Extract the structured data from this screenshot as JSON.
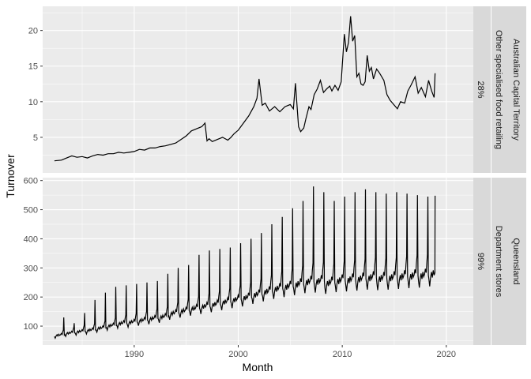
{
  "chart_data": {
    "type": "line",
    "xlabel": "Month",
    "ylabel": "Turnover",
    "x_ticks": [
      1990,
      2000,
      2010,
      2020
    ],
    "xlim": [
      1981.2,
      2022.6
    ],
    "colors": {
      "panel": "#ebebeb",
      "grid": "#ffffff",
      "line": "#000000",
      "strip": "#d9d9d9"
    },
    "panels": [
      {
        "strip_outer": "Australian Capital Territory",
        "strip_inner": "Other specialised food retailing",
        "strip_pct": "28%",
        "ylim": [
          0.0,
          23.4
        ],
        "y_ticks": [
          5,
          10,
          15,
          20
        ],
        "x": [
          1982.33,
          1983.0,
          1983.5,
          1984.0,
          1984.5,
          1985.0,
          1985.5,
          1986.0,
          1986.5,
          1987.0,
          1987.5,
          1988.0,
          1988.5,
          1989.0,
          1989.5,
          1990.0,
          1990.5,
          1991.0,
          1991.5,
          1992.0,
          1992.5,
          1993.0,
          1993.5,
          1994.0,
          1994.5,
          1995.0,
          1995.5,
          1996.0,
          1996.5,
          1996.8,
          1997.0,
          1997.2,
          1997.5,
          1998.0,
          1998.5,
          1999.0,
          1999.3,
          1999.6,
          2000.0,
          2000.5,
          2001.0,
          2001.5,
          2001.8,
          2002.0,
          2002.3,
          2002.6,
          2003.0,
          2003.5,
          2004.0,
          2004.5,
          2005.0,
          2005.3,
          2005.5,
          2005.8,
          2006.0,
          2006.3,
          2006.5,
          2006.8,
          2007.0,
          2007.3,
          2007.6,
          2007.9,
          2008.2,
          2008.5,
          2008.8,
          2009.0,
          2009.3,
          2009.6,
          2009.9,
          2010.0,
          2010.2,
          2010.4,
          2010.6,
          2010.8,
          2011.0,
          2011.2,
          2011.4,
          2011.6,
          2011.8,
          2012.0,
          2012.2,
          2012.4,
          2012.6,
          2012.8,
          2013.0,
          2013.3,
          2013.6,
          2014.0,
          2014.3,
          2014.6,
          2015.0,
          2015.3,
          2015.6,
          2016.0,
          2016.3,
          2016.6,
          2017.0,
          2017.3,
          2017.6,
          2018.0,
          2018.3,
          2018.6,
          2018.83,
          2018.92
        ],
        "values": [
          1.7,
          1.8,
          2.1,
          2.4,
          2.2,
          2.3,
          2.1,
          2.4,
          2.6,
          2.5,
          2.7,
          2.7,
          2.9,
          2.8,
          2.9,
          3.0,
          3.3,
          3.2,
          3.5,
          3.5,
          3.7,
          3.8,
          4.0,
          4.2,
          4.7,
          5.2,
          5.9,
          6.2,
          6.5,
          7.0,
          4.5,
          4.8,
          4.4,
          4.7,
          5.0,
          4.6,
          5.0,
          5.5,
          6.0,
          7.0,
          8.0,
          9.3,
          10.5,
          13.2,
          9.5,
          9.8,
          8.7,
          9.3,
          8.6,
          9.3,
          9.6,
          9.0,
          12.6,
          6.5,
          5.8,
          6.3,
          7.6,
          9.3,
          8.9,
          11.0,
          11.8,
          13.0,
          11.3,
          11.8,
          12.2,
          11.5,
          12.3,
          11.6,
          12.8,
          15.0,
          19.5,
          17.0,
          18.3,
          22.0,
          18.5,
          19.3,
          13.5,
          14.0,
          12.5,
          12.3,
          12.8,
          16.5,
          14.3,
          14.8,
          13.2,
          14.6,
          14.0,
          13.0,
          11.0,
          10.2,
          9.5,
          9.0,
          10.0,
          9.8,
          11.5,
          12.3,
          13.5,
          11.2,
          12.0,
          10.7,
          13.0,
          11.5,
          10.6,
          14.0
        ]
      },
      {
        "strip_outer": "Queensland",
        "strip_inner": "Department stores",
        "strip_pct": "99%",
        "ylim": [
          35,
          610
        ],
        "y_ticks": [
          100,
          200,
          300,
          400,
          500,
          600
        ],
        "start_year": 1982.33,
        "peak_values": [
          130,
          110,
          145,
          190,
          215,
          235,
          240,
          245,
          250,
          255,
          280,
          300,
          310,
          345,
          360,
          365,
          370,
          385,
          400,
          420,
          450,
          475,
          505,
          530,
          580,
          560,
          530,
          545,
          560,
          570,
          560,
          555,
          560,
          555,
          550,
          545,
          548
        ],
        "base_values": [
          68,
          75,
          80,
          85,
          92,
          100,
          108,
          112,
          118,
          124,
          130,
          142,
          150,
          158,
          165,
          172,
          180,
          188,
          195,
          205,
          215,
          225,
          232,
          240,
          248,
          250,
          245,
          252,
          255,
          258,
          262,
          260,
          262,
          265,
          268,
          270,
          275
        ],
        "final_value": 548
      }
    ]
  }
}
